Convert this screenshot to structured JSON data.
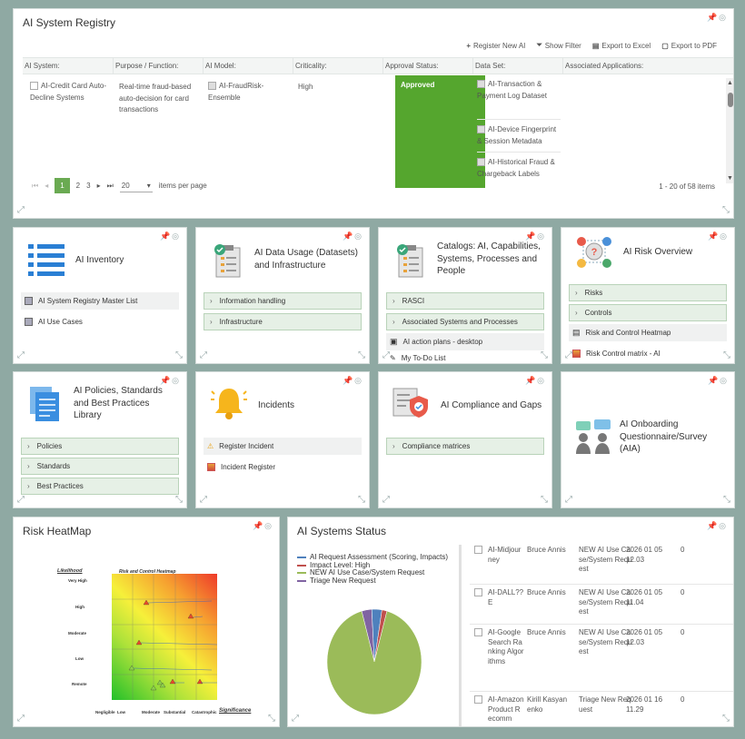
{
  "registry": {
    "title": "AI System Registry",
    "toolbar": [
      "Register New AI",
      "Show Filter",
      "Export to Excel",
      "Export to PDF"
    ],
    "columns": [
      "AI System:",
      "Purpose / Function:",
      "AI Model:",
      "Criticality:",
      "Approval Status:",
      "Data Set:",
      "Associated Applications:"
    ],
    "row": {
      "system": "AI-Credit Card Auto-Decline Systems",
      "purpose": "Real-time fraud-based auto-decision for card transactions",
      "model": "AI-FraudRisk-Ensemble",
      "criticality": "High",
      "status": "Approved",
      "datasets": [
        "AI-Transaction & Payment Log Dataset",
        "AI-Device Fingerprint & Session Metadata",
        "AI-Historical Fraud & Chargeback Labels"
      ]
    },
    "pager": {
      "pages": [
        "1",
        "2",
        "3"
      ],
      "page_size": "20",
      "items_label": "items per page",
      "count": "1 - 20 of 58 items"
    }
  },
  "cards": {
    "inventory": {
      "title": "AI Inventory",
      "links": [
        "AI System Registry Master List",
        "AI Use Cases"
      ]
    },
    "data_usage": {
      "title": "AI Data Usage (Datasets) and Infrastructure",
      "accordions": [
        "Information handling",
        "Infrastructure"
      ]
    },
    "catalogs": {
      "title": "Catalogs: AI, Capabilities, Systems, Processes and People",
      "accordions": [
        "RASCI",
        "Associated Systems and Processes"
      ],
      "links": [
        "AI action plans - desktop",
        "My To-Do List"
      ]
    },
    "risk_overview": {
      "title": "AI Risk Overview",
      "accordions": [
        "Risks",
        "Controls"
      ],
      "links": [
        "Risk and Control Heatmap",
        "Risk Control matrix - AI"
      ]
    },
    "policies": {
      "title": "AI Policies, Standards and Best Practices Library",
      "accordions": [
        "Policies",
        "Standards",
        "Best Practices"
      ]
    },
    "incidents": {
      "title": "Incidents",
      "links": [
        "Register Incident",
        "Incident Register"
      ]
    },
    "compliance": {
      "title": "AI Compliance and Gaps",
      "accordions": [
        "Compliance matrices"
      ]
    },
    "onboarding": {
      "title": "AI Onboarding Questionnaire/Survey (AIA)"
    }
  },
  "heatmap": {
    "title": "Risk HeatMap",
    "chart_title": "Risk and Control Heatmap",
    "y_axis": "Likelihood",
    "x_axis": "Significance",
    "y_ticks": [
      "Very High",
      "High",
      "Moderate",
      "Low",
      "Remote"
    ],
    "x_ticks": [
      "Negligible",
      "Low",
      "Moderate",
      "Substantial",
      "Catastrophic"
    ]
  },
  "status": {
    "title": "AI Systems Status",
    "legend": [
      {
        "label": "AI Request Assessment (Scoring, Impacts)",
        "color": "#4f81bd"
      },
      {
        "label": "Impact Level: High",
        "color": "#c0504d"
      },
      {
        "label": "NEW AI Use Case/System Request",
        "color": "#9bbb59"
      },
      {
        "label": "Triage New Request",
        "color": "#8064a2"
      }
    ],
    "chart_data": {
      "type": "pie",
      "labels": [
        "AI Request Assessment (Scoring, Impacts)",
        "Impact Level: High",
        "NEW AI Use Case/System Request",
        "Triage New Request"
      ],
      "values": [
        2,
        1,
        53,
        2
      ]
    },
    "rows": [
      {
        "name": "AI-Midjourney",
        "user": "Bruce Annis",
        "stage": "NEW AI Use Case/System Request",
        "date": "2026 01 05 12.03",
        "num": "0"
      },
      {
        "name": "AI-DALL??E",
        "user": "Bruce Annis",
        "stage": "NEW AI Use Case/System Request",
        "date": "2026 01 05 11.04",
        "num": "0"
      },
      {
        "name": "AI-Google Search Ranking Algorithms",
        "user": "Bruce Annis",
        "stage": "NEW AI Use Case/System Request",
        "date": "2026 01 05 12.03",
        "num": "0"
      },
      {
        "name": "AI-Amazon Product Recomm",
        "user": "Kirill Kasyanenko",
        "stage": "Triage New Request",
        "date": "2026 01 16 11.29",
        "num": "0"
      }
    ]
  }
}
